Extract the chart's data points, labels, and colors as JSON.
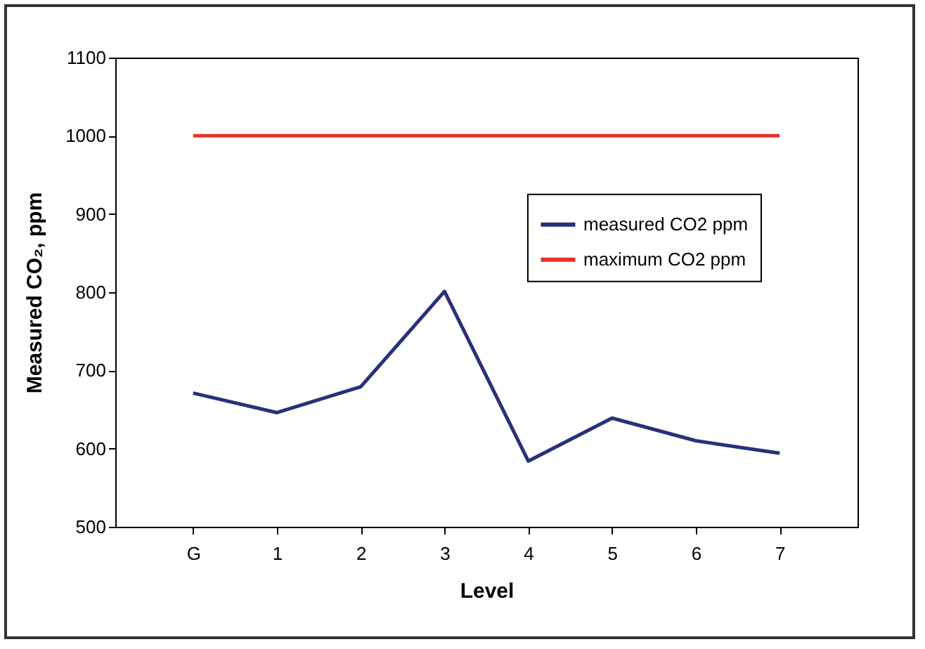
{
  "chart_data": {
    "type": "line",
    "xlabel": "Level",
    "ylabel": "Measured CO₂, ppm",
    "categories": [
      "G",
      "1",
      "2",
      "3",
      "4",
      "5",
      "6",
      "7"
    ],
    "series": [
      {
        "name": "measured CO2 ppm",
        "color": "#27317a",
        "values": [
          671,
          646,
          679,
          801,
          584,
          639,
          610,
          594
        ]
      },
      {
        "name": "maximum CO2 ppm",
        "color": "#e8302c",
        "values": [
          1000,
          1000,
          1000,
          1000,
          1000,
          1000,
          1000,
          1000
        ]
      }
    ],
    "ylim": [
      500,
      1100
    ],
    "yticks": [
      500,
      600,
      700,
      800,
      900,
      1000,
      1100
    ],
    "grid": false,
    "legend": "right",
    "marker": "none",
    "line_style": "solid"
  }
}
